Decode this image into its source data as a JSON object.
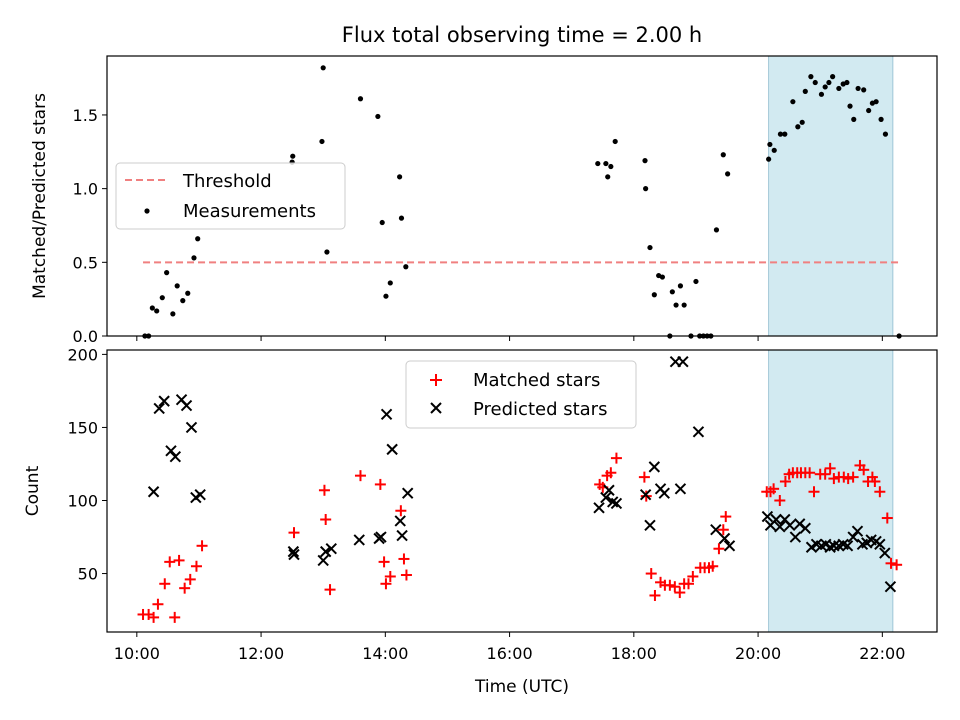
{
  "chart_data": [
    {
      "type": "scatter",
      "title": "Flux total observing time = 2.00 h",
      "xlabel": "",
      "ylabel": "Matched/Predicted stars",
      "xlim": [
        9.52,
        22.88
      ],
      "ylim": [
        0.0,
        1.9
      ],
      "yticks": [
        "0.0",
        "0.5",
        "1.0",
        "1.5"
      ],
      "grid": false,
      "legend": {
        "position": "center-left",
        "entries": [
          "Threshold",
          "Measurements"
        ]
      },
      "highlight_band": {
        "x_start": 20.17,
        "x_end": 22.17,
        "color": "#add8e6"
      },
      "threshold": {
        "name": "Threshold",
        "y": 0.5,
        "x_start": 10.1,
        "x_end": 22.27,
        "color": "#f08080"
      },
      "series": [
        {
          "name": "Measurements",
          "color": "#000000",
          "marker": "dot",
          "points": [
            [
              10.13,
              0.0
            ],
            [
              10.19,
              0.0
            ],
            [
              10.25,
              0.19
            ],
            [
              10.32,
              0.17
            ],
            [
              10.41,
              0.26
            ],
            [
              10.48,
              0.43
            ],
            [
              10.58,
              0.15
            ],
            [
              10.65,
              0.34
            ],
            [
              10.74,
              0.24
            ],
            [
              10.82,
              0.29
            ],
            [
              10.92,
              0.53
            ],
            [
              10.98,
              0.66
            ],
            [
              12.5,
              1.18
            ],
            [
              12.51,
              1.22
            ],
            [
              12.98,
              1.32
            ],
            [
              13.0,
              1.82
            ],
            [
              13.06,
              0.57
            ],
            [
              13.6,
              1.61
            ],
            [
              13.88,
              1.49
            ],
            [
              13.95,
              0.77
            ],
            [
              14.01,
              0.27
            ],
            [
              14.08,
              0.36
            ],
            [
              14.23,
              1.08
            ],
            [
              14.26,
              0.8
            ],
            [
              14.33,
              0.47
            ],
            [
              17.42,
              1.17
            ],
            [
              17.55,
              1.17
            ],
            [
              17.58,
              1.08
            ],
            [
              17.63,
              1.15
            ],
            [
              17.7,
              1.32
            ],
            [
              18.18,
              1.19
            ],
            [
              18.19,
              1.0
            ],
            [
              18.26,
              0.6
            ],
            [
              18.33,
              0.28
            ],
            [
              18.4,
              0.41
            ],
            [
              18.46,
              0.4
            ],
            [
              18.58,
              0.0
            ],
            [
              18.62,
              0.3
            ],
            [
              18.68,
              0.21
            ],
            [
              18.75,
              0.34
            ],
            [
              18.81,
              0.21
            ],
            [
              18.92,
              0.0
            ],
            [
              19.0,
              0.37
            ],
            [
              19.06,
              0.0
            ],
            [
              19.12,
              0.0
            ],
            [
              19.18,
              0.0
            ],
            [
              19.24,
              0.0
            ],
            [
              19.33,
              0.72
            ],
            [
              19.44,
              1.23
            ],
            [
              19.51,
              1.1
            ],
            [
              20.17,
              1.2
            ],
            [
              20.19,
              1.3
            ],
            [
              20.26,
              1.26
            ],
            [
              20.36,
              1.37
            ],
            [
              20.43,
              1.37
            ],
            [
              20.56,
              1.59
            ],
            [
              20.64,
              1.42
            ],
            [
              20.71,
              1.45
            ],
            [
              20.76,
              1.66
            ],
            [
              20.85,
              1.76
            ],
            [
              20.92,
              1.72
            ],
            [
              21.02,
              1.64
            ],
            [
              21.08,
              1.69
            ],
            [
              21.14,
              1.72
            ],
            [
              21.2,
              1.76
            ],
            [
              21.3,
              1.68
            ],
            [
              21.37,
              1.71
            ],
            [
              21.43,
              1.72
            ],
            [
              21.48,
              1.56
            ],
            [
              21.54,
              1.47
            ],
            [
              21.61,
              1.68
            ],
            [
              21.7,
              1.67
            ],
            [
              21.78,
              1.53
            ],
            [
              21.84,
              1.58
            ],
            [
              21.9,
              1.59
            ],
            [
              21.98,
              1.47
            ],
            [
              22.05,
              1.37
            ],
            [
              22.27,
              0.0
            ]
          ]
        }
      ]
    },
    {
      "type": "scatter",
      "title": "",
      "xlabel": "Time (UTC)",
      "ylabel": "Count",
      "xlim": [
        9.52,
        22.88
      ],
      "ylim": [
        10,
        203
      ],
      "yticks": [
        "50",
        "100",
        "150",
        "200"
      ],
      "xticks": [
        "10:00",
        "12:00",
        "14:00",
        "16:00",
        "18:00",
        "20:00",
        "22:00"
      ],
      "grid": false,
      "legend": {
        "position": "top-center",
        "entries": [
          "Matched stars",
          "Predicted stars"
        ]
      },
      "highlight_band": {
        "x_start": 20.17,
        "x_end": 22.17,
        "color": "#add8e6"
      },
      "series": [
        {
          "name": "Matched stars",
          "color": "#ff0000",
          "marker": "plus",
          "points": [
            [
              10.1,
              22
            ],
            [
              10.19,
              22
            ],
            [
              10.27,
              20
            ],
            [
              10.34,
              29
            ],
            [
              10.45,
              43
            ],
            [
              10.53,
              58
            ],
            [
              10.61,
              20
            ],
            [
              10.68,
              59
            ],
            [
              10.77,
              40
            ],
            [
              10.86,
              46
            ],
            [
              10.96,
              55
            ],
            [
              11.05,
              69
            ],
            [
              12.53,
              78
            ],
            [
              13.02,
              107
            ],
            [
              13.04,
              87
            ],
            [
              13.11,
              39
            ],
            [
              13.6,
              117
            ],
            [
              13.92,
              111
            ],
            [
              13.98,
              58
            ],
            [
              14.01,
              43
            ],
            [
              14.08,
              48
            ],
            [
              14.25,
              93
            ],
            [
              14.3,
              60
            ],
            [
              14.34,
              49
            ],
            [
              17.45,
              111
            ],
            [
              17.5,
              109
            ],
            [
              17.57,
              117
            ],
            [
              17.63,
              119
            ],
            [
              17.72,
              129
            ],
            [
              18.17,
              116
            ],
            [
              18.2,
              103
            ],
            [
              18.28,
              50
            ],
            [
              18.34,
              35
            ],
            [
              18.43,
              44
            ],
            [
              18.5,
              42
            ],
            [
              18.58,
              42
            ],
            [
              18.66,
              41
            ],
            [
              18.74,
              37
            ],
            [
              18.81,
              43
            ],
            [
              18.88,
              43
            ],
            [
              18.95,
              48
            ],
            [
              19.07,
              54
            ],
            [
              19.14,
              54
            ],
            [
              19.21,
              54
            ],
            [
              19.27,
              55
            ],
            [
              19.37,
              67
            ],
            [
              19.44,
              80
            ],
            [
              19.48,
              89
            ],
            [
              20.14,
              106
            ],
            [
              20.2,
              106
            ],
            [
              20.25,
              108
            ],
            [
              20.35,
              100
            ],
            [
              20.44,
              113
            ],
            [
              20.5,
              118
            ],
            [
              20.56,
              119
            ],
            [
              20.63,
              119
            ],
            [
              20.69,
              119
            ],
            [
              20.76,
              119
            ],
            [
              20.83,
              119
            ],
            [
              20.9,
              106
            ],
            [
              21.0,
              118
            ],
            [
              21.08,
              118
            ],
            [
              21.16,
              122
            ],
            [
              21.22,
              115
            ],
            [
              21.3,
              116
            ],
            [
              21.38,
              116
            ],
            [
              21.45,
              115
            ],
            [
              21.53,
              116
            ],
            [
              21.64,
              124
            ],
            [
              21.7,
              121
            ],
            [
              21.77,
              113
            ],
            [
              21.84,
              116
            ],
            [
              21.88,
              113
            ],
            [
              21.96,
              106
            ],
            [
              22.08,
              88
            ],
            [
              22.14,
              57
            ],
            [
              22.23,
              56
            ]
          ]
        },
        {
          "name": "Predicted stars",
          "color": "#000000",
          "marker": "x",
          "points": [
            [
              10.27,
              106
            ],
            [
              10.36,
              163
            ],
            [
              10.44,
              168
            ],
            [
              10.55,
              134
            ],
            [
              10.62,
              130
            ],
            [
              10.72,
              169
            ],
            [
              10.8,
              165
            ],
            [
              10.88,
              150
            ],
            [
              10.95,
              102
            ],
            [
              11.02,
              104
            ],
            [
              12.52,
              65
            ],
            [
              12.53,
              63
            ],
            [
              13.0,
              59
            ],
            [
              13.04,
              65
            ],
            [
              13.13,
              67
            ],
            [
              13.58,
              73
            ],
            [
              13.9,
              74
            ],
            [
              13.93,
              75
            ],
            [
              14.02,
              159
            ],
            [
              14.11,
              135
            ],
            [
              14.24,
              86
            ],
            [
              14.27,
              76
            ],
            [
              14.36,
              105
            ],
            [
              17.44,
              95
            ],
            [
              17.55,
              102
            ],
            [
              17.6,
              107
            ],
            [
              17.66,
              99
            ],
            [
              17.72,
              98
            ],
            [
              18.19,
              104
            ],
            [
              18.26,
              83
            ],
            [
              18.33,
              123
            ],
            [
              18.43,
              108
            ],
            [
              18.49,
              105
            ],
            [
              18.67,
              195
            ],
            [
              18.79,
              195
            ],
            [
              18.75,
              108
            ],
            [
              19.04,
              147
            ],
            [
              19.32,
              80
            ],
            [
              19.46,
              74
            ],
            [
              19.54,
              69
            ],
            [
              20.15,
              89
            ],
            [
              20.2,
              83
            ],
            [
              20.29,
              87
            ],
            [
              20.35,
              82
            ],
            [
              20.43,
              87
            ],
            [
              20.51,
              83
            ],
            [
              20.6,
              75
            ],
            [
              20.67,
              84
            ],
            [
              20.76,
              81
            ],
            [
              20.86,
              68
            ],
            [
              20.94,
              70
            ],
            [
              21.02,
              69
            ],
            [
              21.09,
              70
            ],
            [
              21.16,
              68
            ],
            [
              21.22,
              69
            ],
            [
              21.3,
              69
            ],
            [
              21.37,
              70
            ],
            [
              21.44,
              69
            ],
            [
              21.53,
              75
            ],
            [
              21.6,
              79
            ],
            [
              21.68,
              70
            ],
            [
              21.75,
              71
            ],
            [
              21.82,
              73
            ],
            [
              21.9,
              72
            ],
            [
              21.96,
              70
            ],
            [
              22.04,
              64
            ],
            [
              22.13,
              41
            ]
          ]
        }
      ]
    }
  ]
}
